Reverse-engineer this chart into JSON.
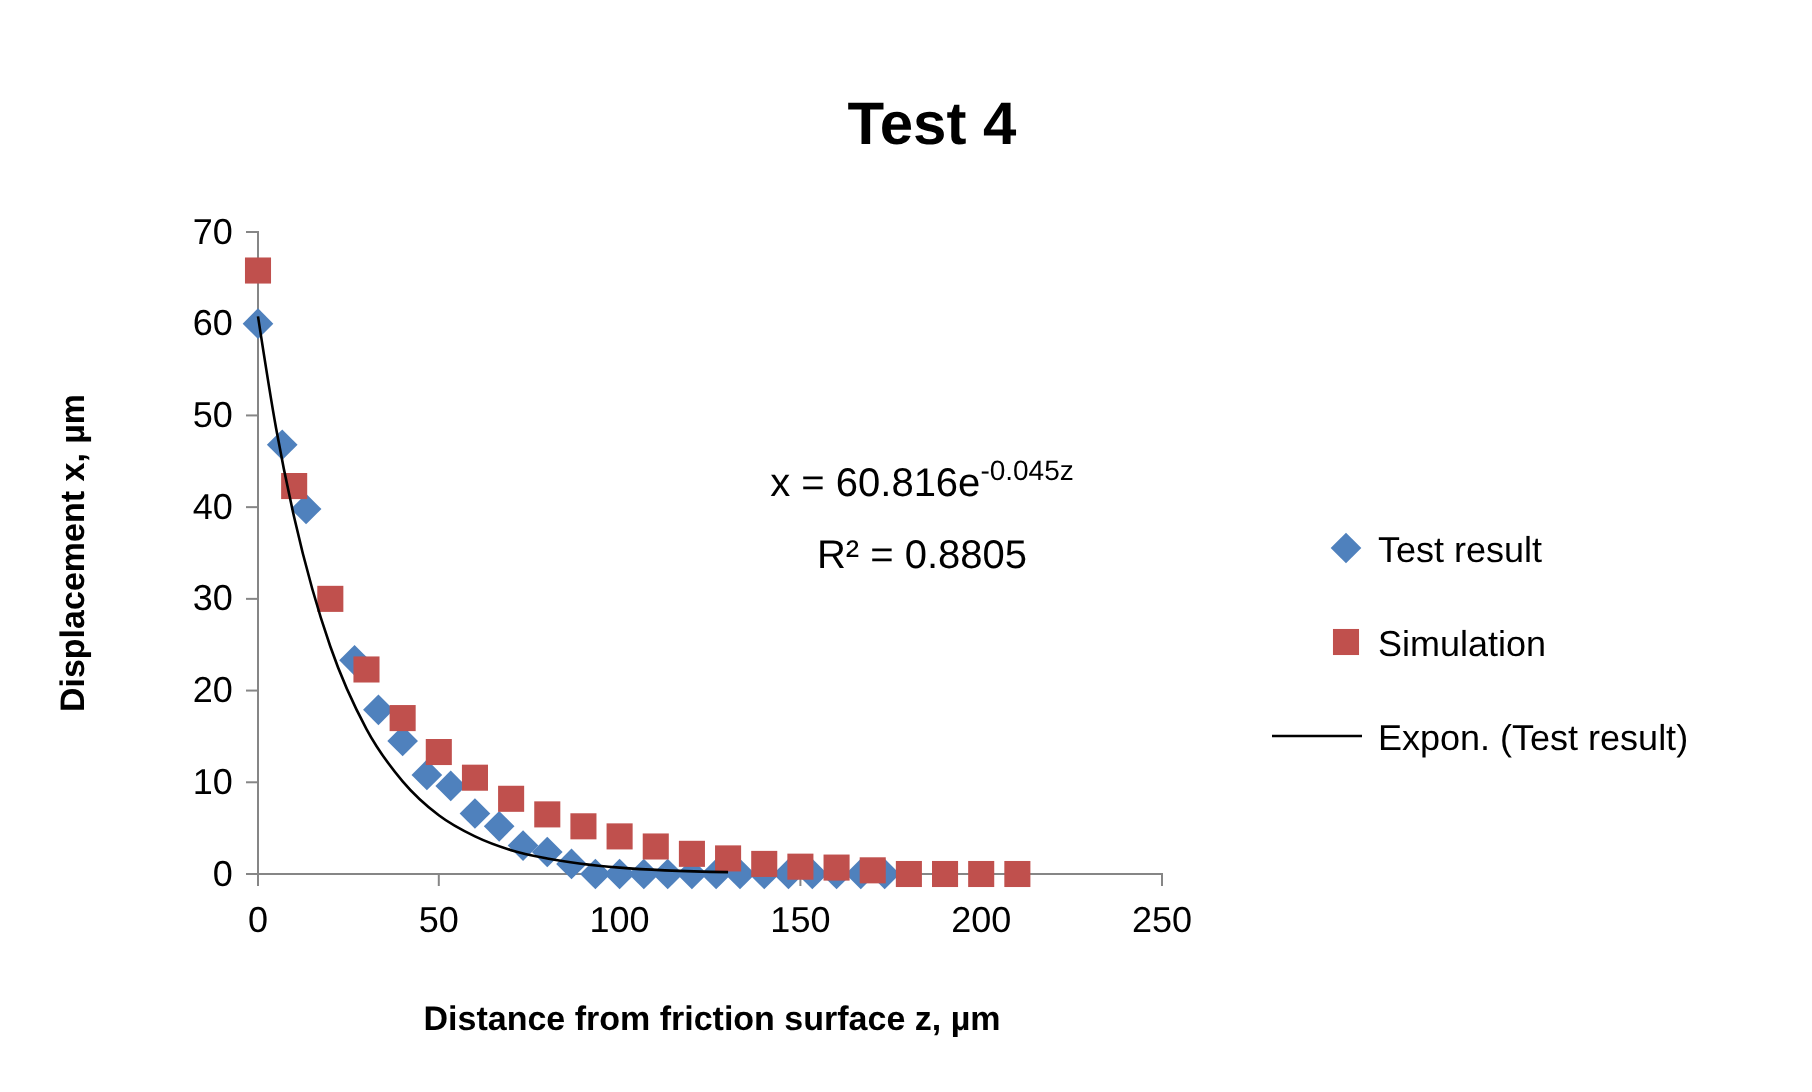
{
  "chart_data": {
    "type": "scatter",
    "title": "Test 4",
    "xlabel": "Distance from friction surface z, µm",
    "ylabel": "Displacement x, µm",
    "xlim": [
      0,
      250
    ],
    "xticks": [
      0,
      50,
      100,
      150,
      200,
      250
    ],
    "ylim": [
      0,
      70
    ],
    "yticks": [
      0,
      10,
      20,
      30,
      40,
      50,
      60,
      70
    ],
    "grid": false,
    "legend": "right",
    "annotations": [
      "x = 60.816e$^{-0.045z}$",
      "R² = 0.8805"
    ],
    "series": [
      {
        "name": "Test result",
        "marker": "diamond",
        "color": "#4f81bd",
        "x": [
          0,
          6.7,
          13.3,
          26.7,
          33.3,
          40,
          46.7,
          53.3,
          60,
          66.7,
          73.3,
          80,
          86.7,
          93.3,
          100,
          106.7,
          113.3,
          120,
          126.7,
          133.3,
          140,
          146.7,
          153.3,
          160,
          166.7,
          173.3
        ],
        "values": [
          60,
          46.8,
          39.8,
          23.3,
          17.9,
          14.5,
          10.8,
          9.6,
          6.6,
          5.2,
          3.1,
          2.4,
          1.1,
          0,
          0,
          0,
          0,
          0,
          0,
          0,
          0,
          0,
          0,
          0,
          0,
          0
        ]
      },
      {
        "name": "Simulation",
        "marker": "square",
        "color": "#c0504d",
        "x": [
          0,
          10,
          20,
          30,
          40,
          50,
          60,
          70,
          80,
          90,
          100,
          110,
          120,
          130,
          140,
          150,
          160,
          170,
          180,
          190,
          200,
          210
        ],
        "values": [
          65.8,
          42.3,
          30,
          22.3,
          17,
          13.3,
          10.5,
          8.2,
          6.5,
          5.2,
          4.1,
          3,
          2.2,
          1.7,
          1.1,
          0.8,
          0.7,
          0.4,
          0,
          0,
          0,
          0
        ]
      },
      {
        "name": "Expon. (Test result)",
        "type": "line",
        "marker": "none",
        "line_style": "solid",
        "color": "#000000",
        "x": [
          0,
          5,
          10,
          15,
          20,
          30,
          40,
          50,
          60,
          70,
          80,
          100,
          130
        ],
        "values": [
          60.8,
          48.6,
          38.9,
          31.1,
          24.8,
          15.8,
          10.1,
          6.4,
          4.1,
          2.6,
          1.7,
          0.7,
          0.2
        ]
      }
    ]
  }
}
